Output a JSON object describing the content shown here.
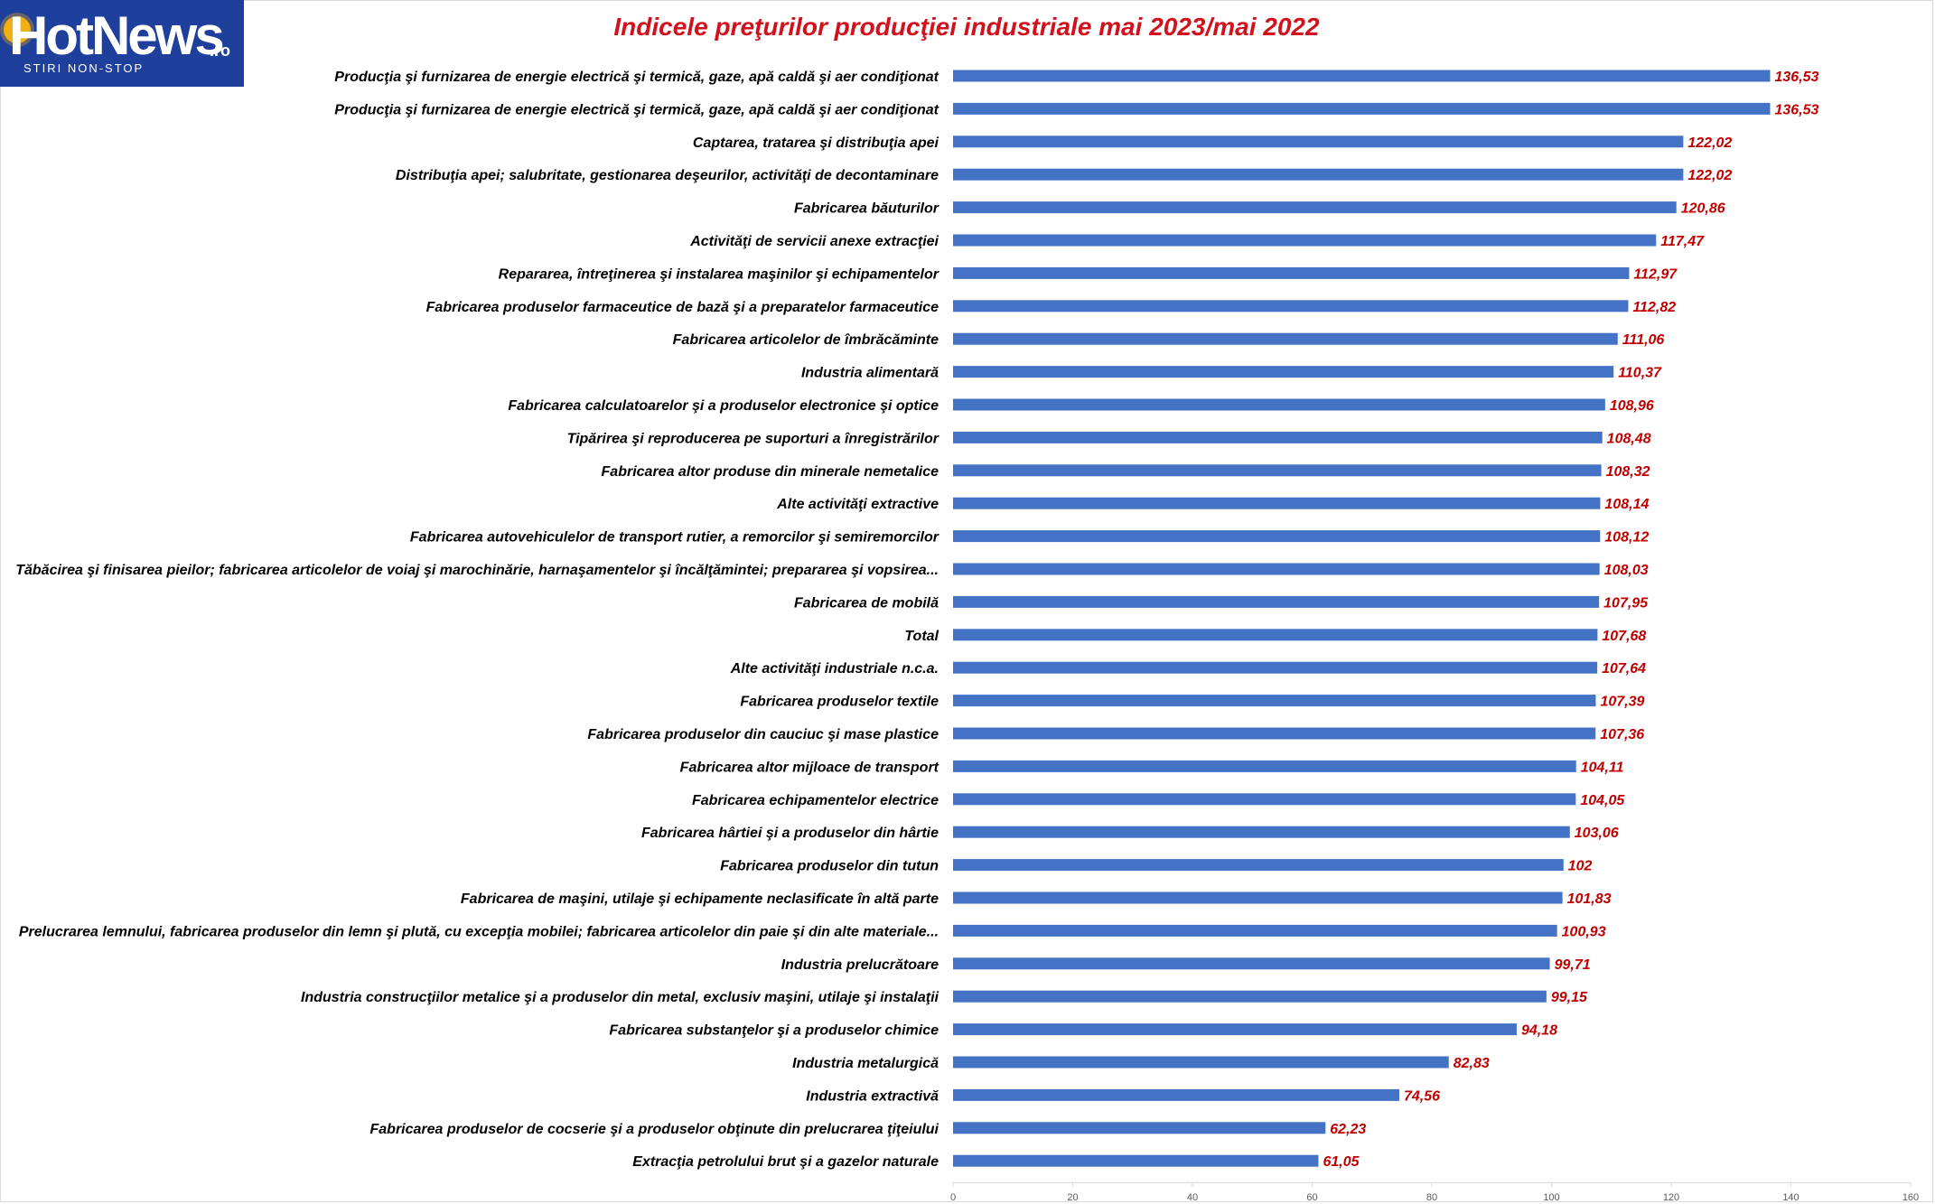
{
  "logo": {
    "name": "HotNews",
    "suffix": ".ro",
    "tagline": "STIRI NON-STOP"
  },
  "chart_data": {
    "type": "bar",
    "orientation": "horizontal",
    "title": "Indicele preţurilor producţiei industriale mai 2023/mai 2022",
    "xlim": [
      0,
      160
    ],
    "xticks": [
      0,
      20,
      40,
      60,
      80,
      100,
      120,
      140,
      160
    ],
    "grid": false,
    "bar_color": "#4472c4",
    "label_color": "#c00000",
    "title_color": "#d1121d",
    "categories": [
      "Producţia şi furnizarea de energie electrică şi termică, gaze, apă caldă şi aer condiţionat",
      "Producţia şi furnizarea de energie electrică şi termică, gaze, apă caldă şi aer condiţionat",
      "Captarea, tratarea şi distribuţia apei",
      "Distribuţia apei; salubritate, gestionarea deşeurilor, activităţi de decontaminare",
      "Fabricarea băuturilor",
      "Activităţi de servicii anexe extracţiei",
      "Repararea, întreţinerea şi instalarea maşinilor şi echipamentelor",
      "Fabricarea produselor farmaceutice de bază şi a preparatelor farmaceutice",
      "Fabricarea articolelor de îmbrăcăminte",
      "Industria alimentară",
      "Fabricarea calculatoarelor şi a produselor electronice şi optice",
      "Tipărirea şi reproducerea pe suporturi a înregistrărilor",
      "Fabricarea altor produse din minerale nemetalice",
      "Alte activităţi extractive",
      "Fabricarea autovehiculelor de transport rutier, a remorcilor şi semiremorcilor",
      "Tăbăcirea şi finisarea pieilor; fabricarea articolelor de voiaj şi marochinărie, harnaşamentelor şi încălţămintei; prepararea şi vopsirea...",
      "Fabricarea de mobilă",
      "Total",
      "Alte activităţi industriale n.c.a.",
      "Fabricarea produselor textile",
      "Fabricarea produselor din cauciuc şi mase plastice",
      "Fabricarea altor mijloace de transport",
      "Fabricarea echipamentelor electrice",
      "Fabricarea hârtiei şi a produselor din hârtie",
      "Fabricarea produselor din tutun",
      "Fabricarea de maşini, utilaje şi echipamente neclasificate în altă parte",
      "Prelucrarea lemnului, fabricarea produselor din lemn şi plută, cu excepţia mobilei; fabricarea articolelor din paie şi din alte materiale...",
      "Industria prelucrătoare",
      "Industria construcţiilor metalice şi a produselor din metal, exclusiv maşini, utilaje şi instalaţii",
      "Fabricarea substanţelor şi a produselor chimice",
      "Industria metalurgică",
      "Industria extractivă",
      "Fabricarea produselor de cocserie şi a produselor obţinute din prelucrarea ţiţeiului",
      "Extracţia petrolului brut şi a gazelor naturale"
    ],
    "values": [
      136.53,
      136.53,
      122.02,
      122.02,
      120.86,
      117.47,
      112.97,
      112.82,
      111.06,
      110.37,
      108.96,
      108.48,
      108.32,
      108.14,
      108.12,
      108.03,
      107.95,
      107.68,
      107.64,
      107.39,
      107.36,
      104.11,
      104.05,
      103.06,
      102,
      101.83,
      100.93,
      99.71,
      99.15,
      94.18,
      82.83,
      74.56,
      62.23,
      61.05
    ],
    "value_labels": [
      "136,53",
      "136,53",
      "122,02",
      "122,02",
      "120,86",
      "117,47",
      "112,97",
      "112,82",
      "111,06",
      "110,37",
      "108,96",
      "108,48",
      "108,32",
      "108,14",
      "108,12",
      "108,03",
      "107,95",
      "107,68",
      "107,64",
      "107,39",
      "107,36",
      "104,11",
      "104,05",
      "103,06",
      "102",
      "101,83",
      "100,93",
      "99,71",
      "99,15",
      "94,18",
      "82,83",
      "74,56",
      "62,23",
      "61,05"
    ]
  }
}
